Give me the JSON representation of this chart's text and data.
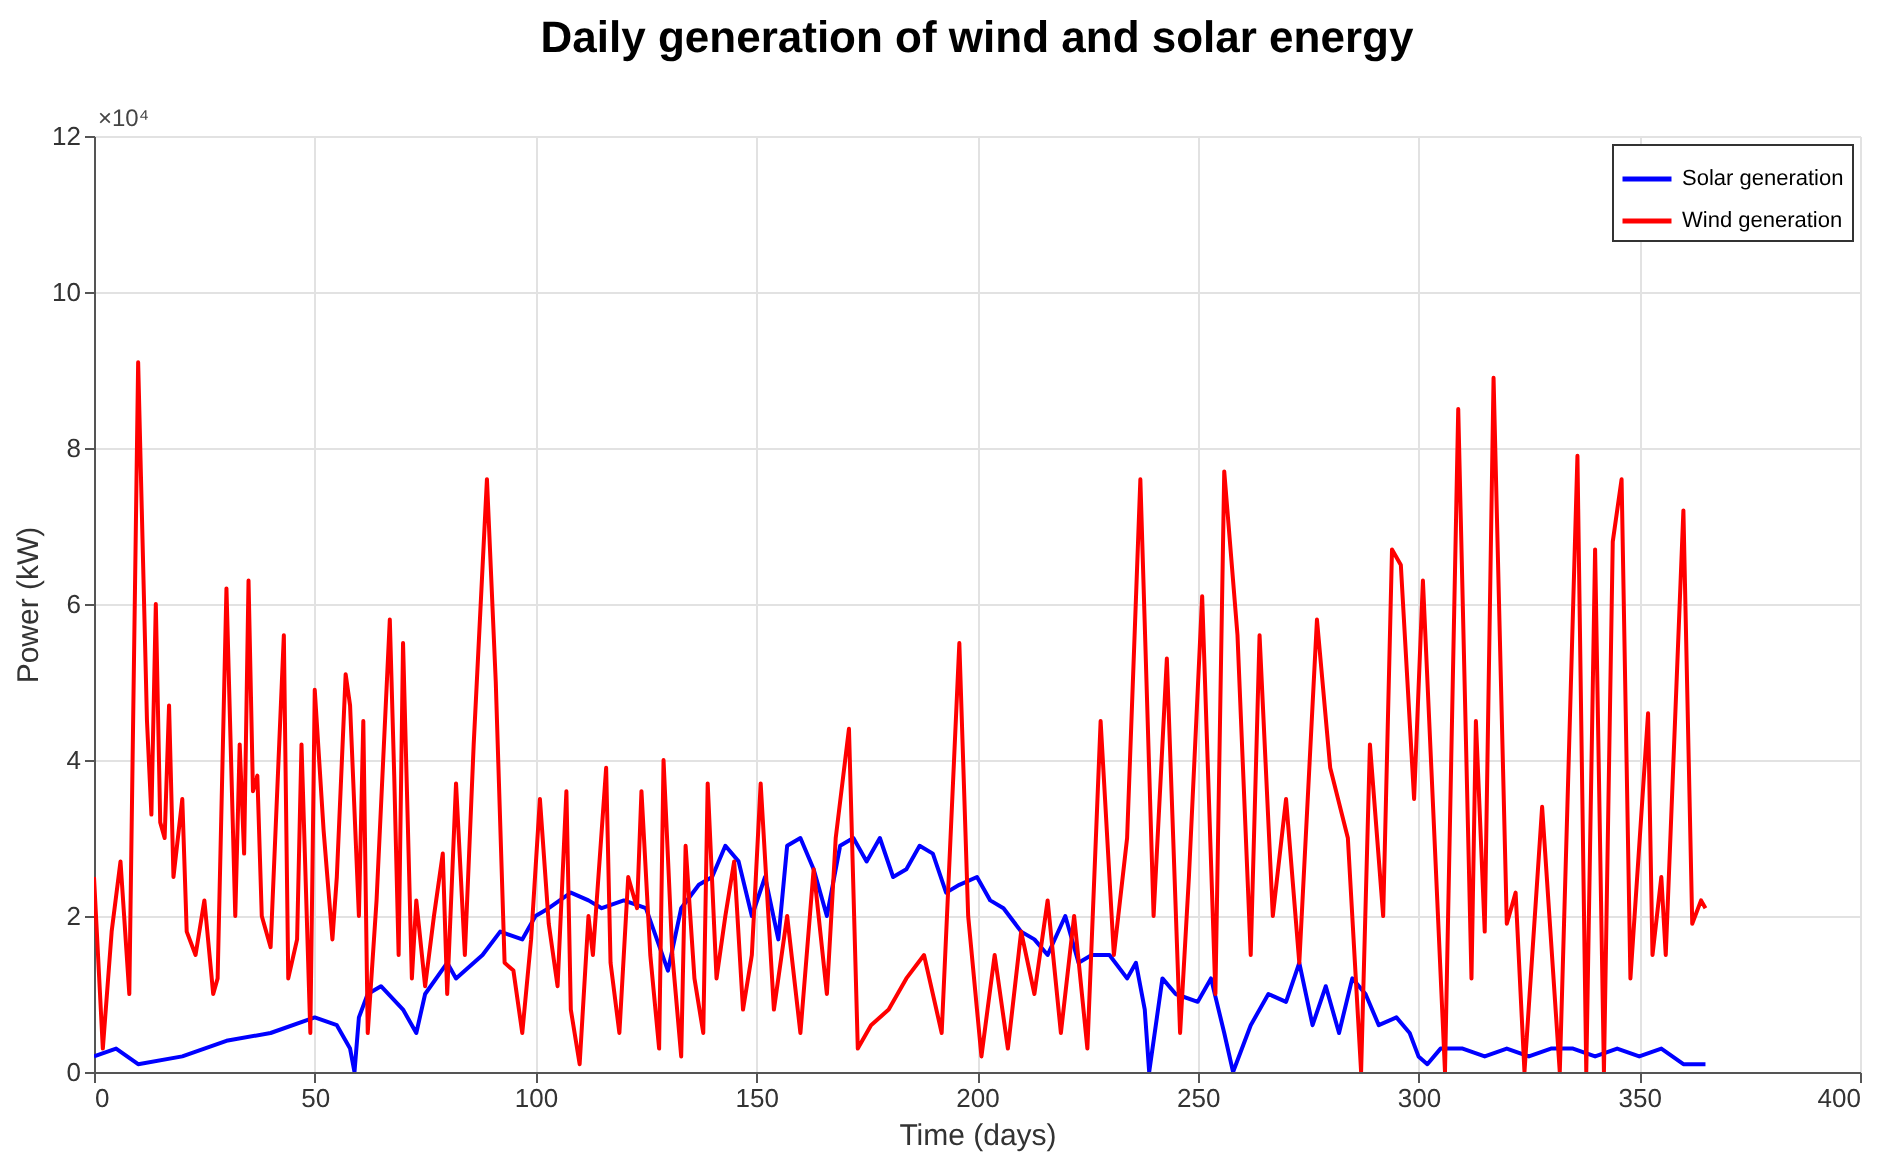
{
  "chart_data": {
    "type": "line",
    "title": "Daily generation of wind and solar energy",
    "xlabel": "Time (days)",
    "ylabel": "Power (kW)",
    "annotations": [
      "×10⁴"
    ],
    "xlim": [
      0,
      400
    ],
    "xticks": [
      0,
      50,
      100,
      150,
      200,
      250,
      300,
      350,
      400
    ],
    "ylim": [
      0,
      12
    ],
    "yticks": [
      0,
      2,
      4,
      6,
      8,
      10,
      12
    ],
    "grid": true,
    "legend": "top right",
    "line_style": "solid",
    "marker": "none",
    "series": [
      {
        "name": "Solar generation",
        "color": "#0000ff",
        "x": [
          0,
          5,
          10,
          20,
          30,
          40,
          50,
          55,
          58,
          59,
          60,
          62,
          65,
          70,
          73,
          75,
          80,
          82,
          88,
          92,
          97,
          100,
          103,
          108,
          112,
          115,
          120,
          125,
          130,
          133,
          137,
          140,
          143,
          146,
          149,
          152,
          155,
          157,
          160,
          163,
          166,
          169,
          172,
          175,
          178,
          181,
          184,
          187,
          190,
          193,
          196,
          200,
          203,
          206,
          210,
          213,
          216,
          220,
          223,
          226,
          230,
          234,
          236,
          238,
          239,
          242,
          245,
          250,
          253,
          256,
          258,
          262,
          266,
          270,
          273,
          276,
          279,
          282,
          285,
          288,
          291,
          295,
          298,
          300,
          302,
          305,
          310,
          315,
          320,
          325,
          330,
          335,
          340,
          345,
          350,
          355,
          360,
          365
        ],
        "values": [
          0.2,
          0.3,
          0.1,
          0.2,
          0.4,
          0.5,
          0.7,
          0.6,
          0.3,
          0,
          0.7,
          1.0,
          1.1,
          0.8,
          0.5,
          1.0,
          1.4,
          1.2,
          1.5,
          1.8,
          1.7,
          2.0,
          2.1,
          2.3,
          2.2,
          2.1,
          2.2,
          2.1,
          1.3,
          2.1,
          2.4,
          2.5,
          2.9,
          2.7,
          2.0,
          2.5,
          1.7,
          2.9,
          3.0,
          2.6,
          2.0,
          2.9,
          3.0,
          2.7,
          3.0,
          2.5,
          2.6,
          2.9,
          2.8,
          2.3,
          2.4,
          2.5,
          2.2,
          2.1,
          1.8,
          1.7,
          1.5,
          2.0,
          1.4,
          1.5,
          1.5,
          1.2,
          1.4,
          0.8,
          0,
          1.2,
          1.0,
          0.9,
          1.2,
          0.5,
          0,
          0.6,
          1.0,
          0.9,
          1.4,
          0.6,
          1.1,
          0.5,
          1.2,
          1.0,
          0.6,
          0.7,
          0.5,
          0.2,
          0.1,
          0.3,
          0.3,
          0.2,
          0.3,
          0.2,
          0.3,
          0.3,
          0.2,
          0.3,
          0.2,
          0.3,
          0.1,
          0.1
        ]
      },
      {
        "name": "Wind generation",
        "color": "#ff0000",
        "x": [
          0,
          2,
          4,
          6,
          8,
          10,
          12,
          13,
          14,
          15,
          16,
          17,
          18,
          20,
          21,
          23,
          25,
          27,
          28,
          30,
          32,
          33,
          34,
          35,
          36,
          37,
          38,
          40,
          43,
          44,
          46,
          47,
          49,
          50,
          52,
          54,
          55,
          57,
          58,
          60,
          61,
          62,
          64,
          67,
          68,
          69,
          70,
          72,
          73,
          75,
          77,
          79,
          80,
          82,
          84,
          86,
          89,
          91,
          93,
          95,
          97,
          99,
          101,
          103,
          105,
          107,
          108,
          110,
          112,
          113,
          116,
          117,
          119,
          121,
          123,
          124,
          126,
          128,
          129,
          131,
          133,
          134,
          136,
          138,
          139,
          141,
          143,
          145,
          147,
          149,
          151,
          154,
          157,
          160,
          163,
          166,
          168,
          171,
          173,
          176,
          180,
          184,
          188,
          192,
          194,
          196,
          198,
          201,
          204,
          207,
          210,
          213,
          216,
          219,
          222,
          225,
          228,
          231,
          234,
          237,
          240,
          243,
          246,
          248,
          251,
          254,
          256,
          259,
          262,
          264,
          267,
          270,
          273,
          277,
          280,
          284,
          287,
          289,
          292,
          294,
          296,
          299,
          301,
          306,
          309,
          312,
          313,
          315,
          317,
          320,
          322,
          324,
          328,
          332,
          336,
          338,
          340,
          342,
          344,
          346,
          348,
          352,
          353,
          355,
          356,
          360,
          362,
          364,
          365
        ],
        "values": [
          2.5,
          0.3,
          1.8,
          2.7,
          1.0,
          9.1,
          4.5,
          3.3,
          6.0,
          3.2,
          3.0,
          4.7,
          2.5,
          3.5,
          1.8,
          1.5,
          2.2,
          1.0,
          1.2,
          6.2,
          2.0,
          4.2,
          2.8,
          6.3,
          3.6,
          3.8,
          2.0,
          1.6,
          5.6,
          1.2,
          1.7,
          4.2,
          0.5,
          4.9,
          3.1,
          1.7,
          2.5,
          5.1,
          4.7,
          2.0,
          4.5,
          0.5,
          2.2,
          5.8,
          3.8,
          1.5,
          5.5,
          1.2,
          2.2,
          1.1,
          2.0,
          2.8,
          1.0,
          3.7,
          1.5,
          4.2,
          7.6,
          5.0,
          1.4,
          1.3,
          0.5,
          1.7,
          3.5,
          1.9,
          1.1,
          3.6,
          0.8,
          0.1,
          2.0,
          1.5,
          3.9,
          1.4,
          0.5,
          2.5,
          2.1,
          3.6,
          1.5,
          0.3,
          4.0,
          1.5,
          0.2,
          2.9,
          1.2,
          0.5,
          3.7,
          1.2,
          2.0,
          2.7,
          0.8,
          1.5,
          3.7,
          0.8,
          2.0,
          0.5,
          2.6,
          1.0,
          3.0,
          4.4,
          0.3,
          0.6,
          0.8,
          1.2,
          1.5,
          0.5,
          3.0,
          5.5,
          2.0,
          0.2,
          1.5,
          0.3,
          1.8,
          1.0,
          2.2,
          0.5,
          2.0,
          0.3,
          4.5,
          1.5,
          3.0,
          7.6,
          2.0,
          5.3,
          0.5,
          2.5,
          6.1,
          1.0,
          7.7,
          5.6,
          1.5,
          5.6,
          2.0,
          3.5,
          1.4,
          5.8,
          3.9,
          3.0,
          0,
          4.2,
          2.0,
          6.7,
          6.5,
          3.5,
          6.3,
          0,
          8.5,
          1.2,
          4.5,
          1.8,
          8.9,
          1.9,
          2.3,
          0,
          3.4,
          0,
          7.9,
          0,
          6.7,
          0,
          6.8,
          7.6,
          1.2,
          4.6,
          1.5,
          2.5,
          1.5,
          7.2,
          1.9,
          2.2,
          2.1
        ]
      }
    ]
  }
}
